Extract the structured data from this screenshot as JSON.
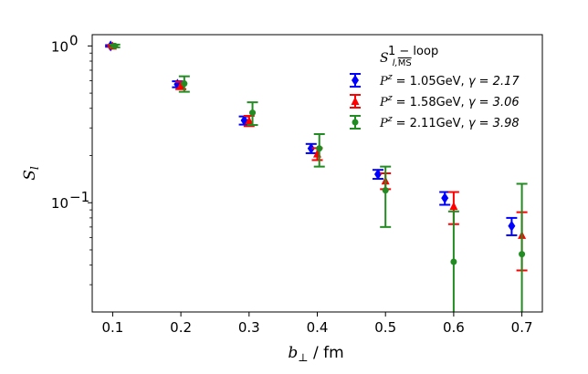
{
  "chart_data": {
    "type": "scatter",
    "title": "",
    "yscale": "log",
    "xlabel": "b_⊥ / fm",
    "ylabel": "S_l",
    "xlim": [
      0.07,
      0.73
    ],
    "ylim": [
      0.0201,
      1.18
    ],
    "x_ticks": [
      {
        "value": 0.1,
        "label": "0.1"
      },
      {
        "value": 0.2,
        "label": "0.2"
      },
      {
        "value": 0.3,
        "label": "0.3"
      },
      {
        "value": 0.4,
        "label": "0.4"
      },
      {
        "value": 0.5,
        "label": "0.5"
      },
      {
        "value": 0.6,
        "label": "0.6"
      },
      {
        "value": 0.7,
        "label": "0.7"
      }
    ],
    "y_ticks": [
      {
        "value": 1.0,
        "label": "10",
        "exponent": "0"
      },
      {
        "value": 0.1,
        "label": "10",
        "exponent": "−1"
      }
    ],
    "legend": {
      "position": "top-right",
      "title": "S_{l,MS}^{1−loop}",
      "title_main": "S",
      "title_sub": "l,",
      "title_sub_bar": "MS",
      "title_sup": "1 − loop"
    },
    "series": [
      {
        "name": "P^z = 1.05GeV, γ = 2.17",
        "label_pz": "P",
        "label_sup": "z",
        "label_rest": " = 1.05GeV, ",
        "label_gamma": "γ = 2.17",
        "color": "#0000ff",
        "marker": "diamond",
        "x": [
          0.097,
          0.195,
          0.293,
          0.391,
          0.489,
          0.587,
          0.685
        ],
        "y": [
          1.0,
          0.57,
          0.335,
          0.222,
          0.152,
          0.107,
          0.071
        ],
        "yerr": [
          0.012,
          0.025,
          0.02,
          0.015,
          0.01,
          0.01,
          0.009
        ]
      },
      {
        "name": "P^z = 1.58GeV, γ = 3.06",
        "label_pz": "P",
        "label_sup": "z",
        "label_rest": " = 1.58GeV, ",
        "label_gamma": "γ = 3.06",
        "color": "#ff0000",
        "marker": "triangle",
        "x": [
          0.1,
          0.2,
          0.3,
          0.4,
          0.5,
          0.6,
          0.7
        ],
        "y": [
          1.0,
          0.56,
          0.333,
          0.205,
          0.138,
          0.095,
          0.062
        ],
        "yerr": [
          0.015,
          0.03,
          0.025,
          0.018,
          0.016,
          0.022,
          0.025
        ]
      },
      {
        "name": "P^z = 2.11GeV, γ = 3.98",
        "label_pz": "P",
        "label_sup": "z",
        "label_rest": " = 2.11GeV, ",
        "label_gamma": "γ = 3.98",
        "color": "#228b22",
        "marker": "circle",
        "x": [
          0.103,
          0.205,
          0.305,
          0.403,
          0.5,
          0.6,
          0.7
        ],
        "y": [
          1.0,
          0.575,
          0.375,
          0.222,
          0.12,
          0.042,
          0.047
        ],
        "yerr": [
          0.02,
          0.065,
          0.062,
          0.052,
          0.05,
          0.046,
          0.085
        ]
      }
    ]
  }
}
